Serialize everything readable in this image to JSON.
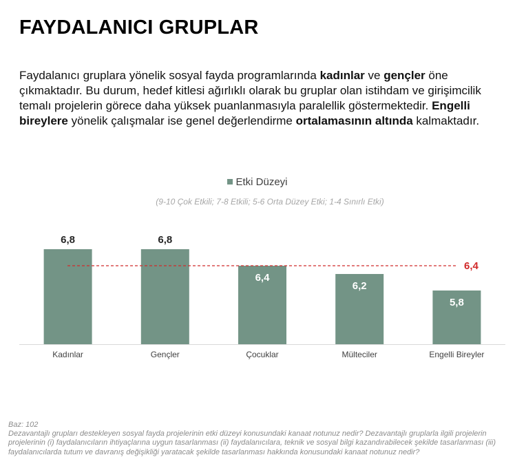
{
  "page": {
    "title": "FAYDALANICI GRUPLAR",
    "intro": [
      {
        "t": "Faydalanıcı gruplara yönelik sosyal fayda programlarında ",
        "b": false
      },
      {
        "t": "kadınlar",
        "b": true
      },
      {
        "t": " ve ",
        "b": false
      },
      {
        "t": "gençler",
        "b": true
      },
      {
        "t": " öne çıkmaktadır. Bu durum, hedef kitlesi ağırlıklı olarak bu gruplar olan istihdam ve girişimcilik temalı projelerin görece daha yüksek puanlanmasıyla paralellik göstermektedir. ",
        "b": false
      },
      {
        "t": "Engelli bireylere",
        "b": true
      },
      {
        "t": " yönelik çalışmalar ise genel değerlendirme ",
        "b": false
      },
      {
        "t": "ortalamasının altında",
        "b": true
      },
      {
        "t": " kalmaktadır.",
        "b": false
      }
    ],
    "footer_base": "Baz: 102",
    "footer_question": "Dezavantajlı grupları destekleyen sosyal fayda projelerinin etki düzeyi konusundaki kanaat notunuz nedir? Dezavantajlı gruplarla ilgili projelerin projelerinin (i) faydalanıcıların ihtiyaçlarına uygun tasarlanması (ii) faydalanıcılara, teknik ve sosyal bilgi kazandırabilecek şekilde tasarlanması (iii) faydalanıcılarda tutum ve davranış değişikliği yaratacak şekilde tasarlanması hakkında konusundaki kanaat notunuz nedir?"
  },
  "chart_data": {
    "type": "bar",
    "legend": "Etki Düzeyi",
    "subtitle": "(9-10 Çok Etkili; 7-8 Etkili; 5-6 Orta Düzey Etki; 1-4 Sınırlı Etki)",
    "categories": [
      "Kadınlar",
      "Gençler",
      "Çocuklar",
      "Mülteciler",
      "Engelli Bireyler"
    ],
    "values": [
      6.8,
      6.8,
      6.4,
      6.2,
      5.8
    ],
    "value_labels": [
      "6,8",
      "6,8",
      "6,4",
      "6,2",
      "5,8"
    ],
    "average": 6.4,
    "average_label": "6,4",
    "ylim": [
      4.5,
      7.0
    ],
    "bar_color": "#739486",
    "average_color": "#d12a2a",
    "legend_position": "top"
  }
}
